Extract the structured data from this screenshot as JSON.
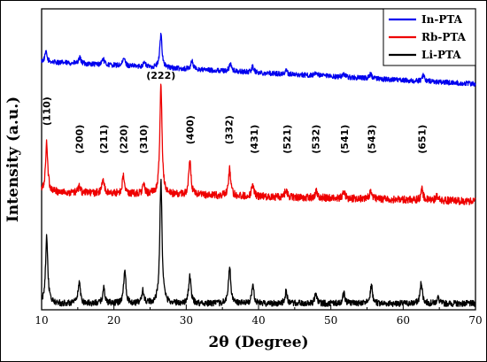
{
  "chart_data": {
    "type": "line",
    "title": "",
    "xlabel": "2θ (Degree)",
    "ylabel": "Intensity (a.u.)",
    "xlim": [
      10,
      70
    ],
    "xticks": [
      10,
      20,
      30,
      40,
      50,
      60,
      70
    ],
    "y_tick_labels": false,
    "legend": {
      "placement": "top-right"
    },
    "series": [
      {
        "name": "In-PTA",
        "color": "#0000ee",
        "offset": 0.78,
        "baseline_slope": -0.0012,
        "noise": 0.008,
        "peaks": [
          [
            10.6,
            0.03
          ],
          [
            15.3,
            0.018
          ],
          [
            18.5,
            0.02
          ],
          [
            21.4,
            0.025
          ],
          [
            24.2,
            0.015
          ],
          [
            26.5,
            0.11
          ],
          [
            30.8,
            0.028
          ],
          [
            36.1,
            0.025
          ],
          [
            39.2,
            0.02
          ],
          [
            43.8,
            0.012
          ],
          [
            48.0,
            0.012
          ],
          [
            51.8,
            0.012
          ],
          [
            55.5,
            0.015
          ],
          [
            62.8,
            0.02
          ]
        ]
      },
      {
        "name": "Rb-PTA",
        "color": "#ee0000",
        "offset": 0.36,
        "baseline_slope": -0.0005,
        "noise": 0.012,
        "peaks": [
          [
            10.7,
            0.16
          ],
          [
            15.2,
            0.02
          ],
          [
            18.5,
            0.045
          ],
          [
            21.3,
            0.055
          ],
          [
            24.1,
            0.03
          ],
          [
            26.5,
            0.35
          ],
          [
            30.5,
            0.11
          ],
          [
            36.0,
            0.09
          ],
          [
            39.2,
            0.04
          ],
          [
            43.8,
            0.025
          ],
          [
            48.0,
            0.022
          ],
          [
            51.8,
            0.02
          ],
          [
            55.5,
            0.025
          ],
          [
            62.6,
            0.035
          ],
          [
            64.6,
            0.012
          ]
        ]
      },
      {
        "name": "Li-PTA",
        "color": "#000000",
        "offset": 0.0,
        "baseline_slope": 0.0,
        "noise": 0.01,
        "peaks": [
          [
            10.7,
            0.22
          ],
          [
            15.2,
            0.07
          ],
          [
            18.6,
            0.05
          ],
          [
            21.5,
            0.11
          ],
          [
            24.0,
            0.04
          ],
          [
            26.5,
            0.4
          ],
          [
            30.5,
            0.09
          ],
          [
            36.0,
            0.12
          ],
          [
            39.2,
            0.06
          ],
          [
            43.8,
            0.04
          ],
          [
            47.9,
            0.03
          ],
          [
            51.8,
            0.035
          ],
          [
            55.6,
            0.06
          ],
          [
            62.5,
            0.07
          ],
          [
            64.8,
            0.02
          ]
        ]
      }
    ],
    "annotations": [
      {
        "text": "(110)",
        "x": 10.7,
        "y_level": 0.62
      },
      {
        "text": "(200)",
        "x": 15.2,
        "y_level": 0.53
      },
      {
        "text": "(211)",
        "x": 18.6,
        "y_level": 0.53
      },
      {
        "text": "(220)",
        "x": 21.3,
        "y_level": 0.53
      },
      {
        "text": "(310)",
        "x": 24.1,
        "y_level": 0.53
      },
      {
        "text": "(222)",
        "x": 26.5,
        "y_level": 0.725
      },
      {
        "text": "(400)",
        "x": 30.5,
        "y_level": 0.56
      },
      {
        "text": "(332)",
        "x": 35.9,
        "y_level": 0.56
      },
      {
        "text": "(431)",
        "x": 39.4,
        "y_level": 0.53
      },
      {
        "text": "(521)",
        "x": 43.9,
        "y_level": 0.53
      },
      {
        "text": "(532)",
        "x": 47.9,
        "y_level": 0.53
      },
      {
        "text": "(541)",
        "x": 51.9,
        "y_level": 0.53
      },
      {
        "text": "(543)",
        "x": 55.6,
        "y_level": 0.53
      },
      {
        "text": "(651)",
        "x": 62.6,
        "y_level": 0.53
      }
    ]
  }
}
